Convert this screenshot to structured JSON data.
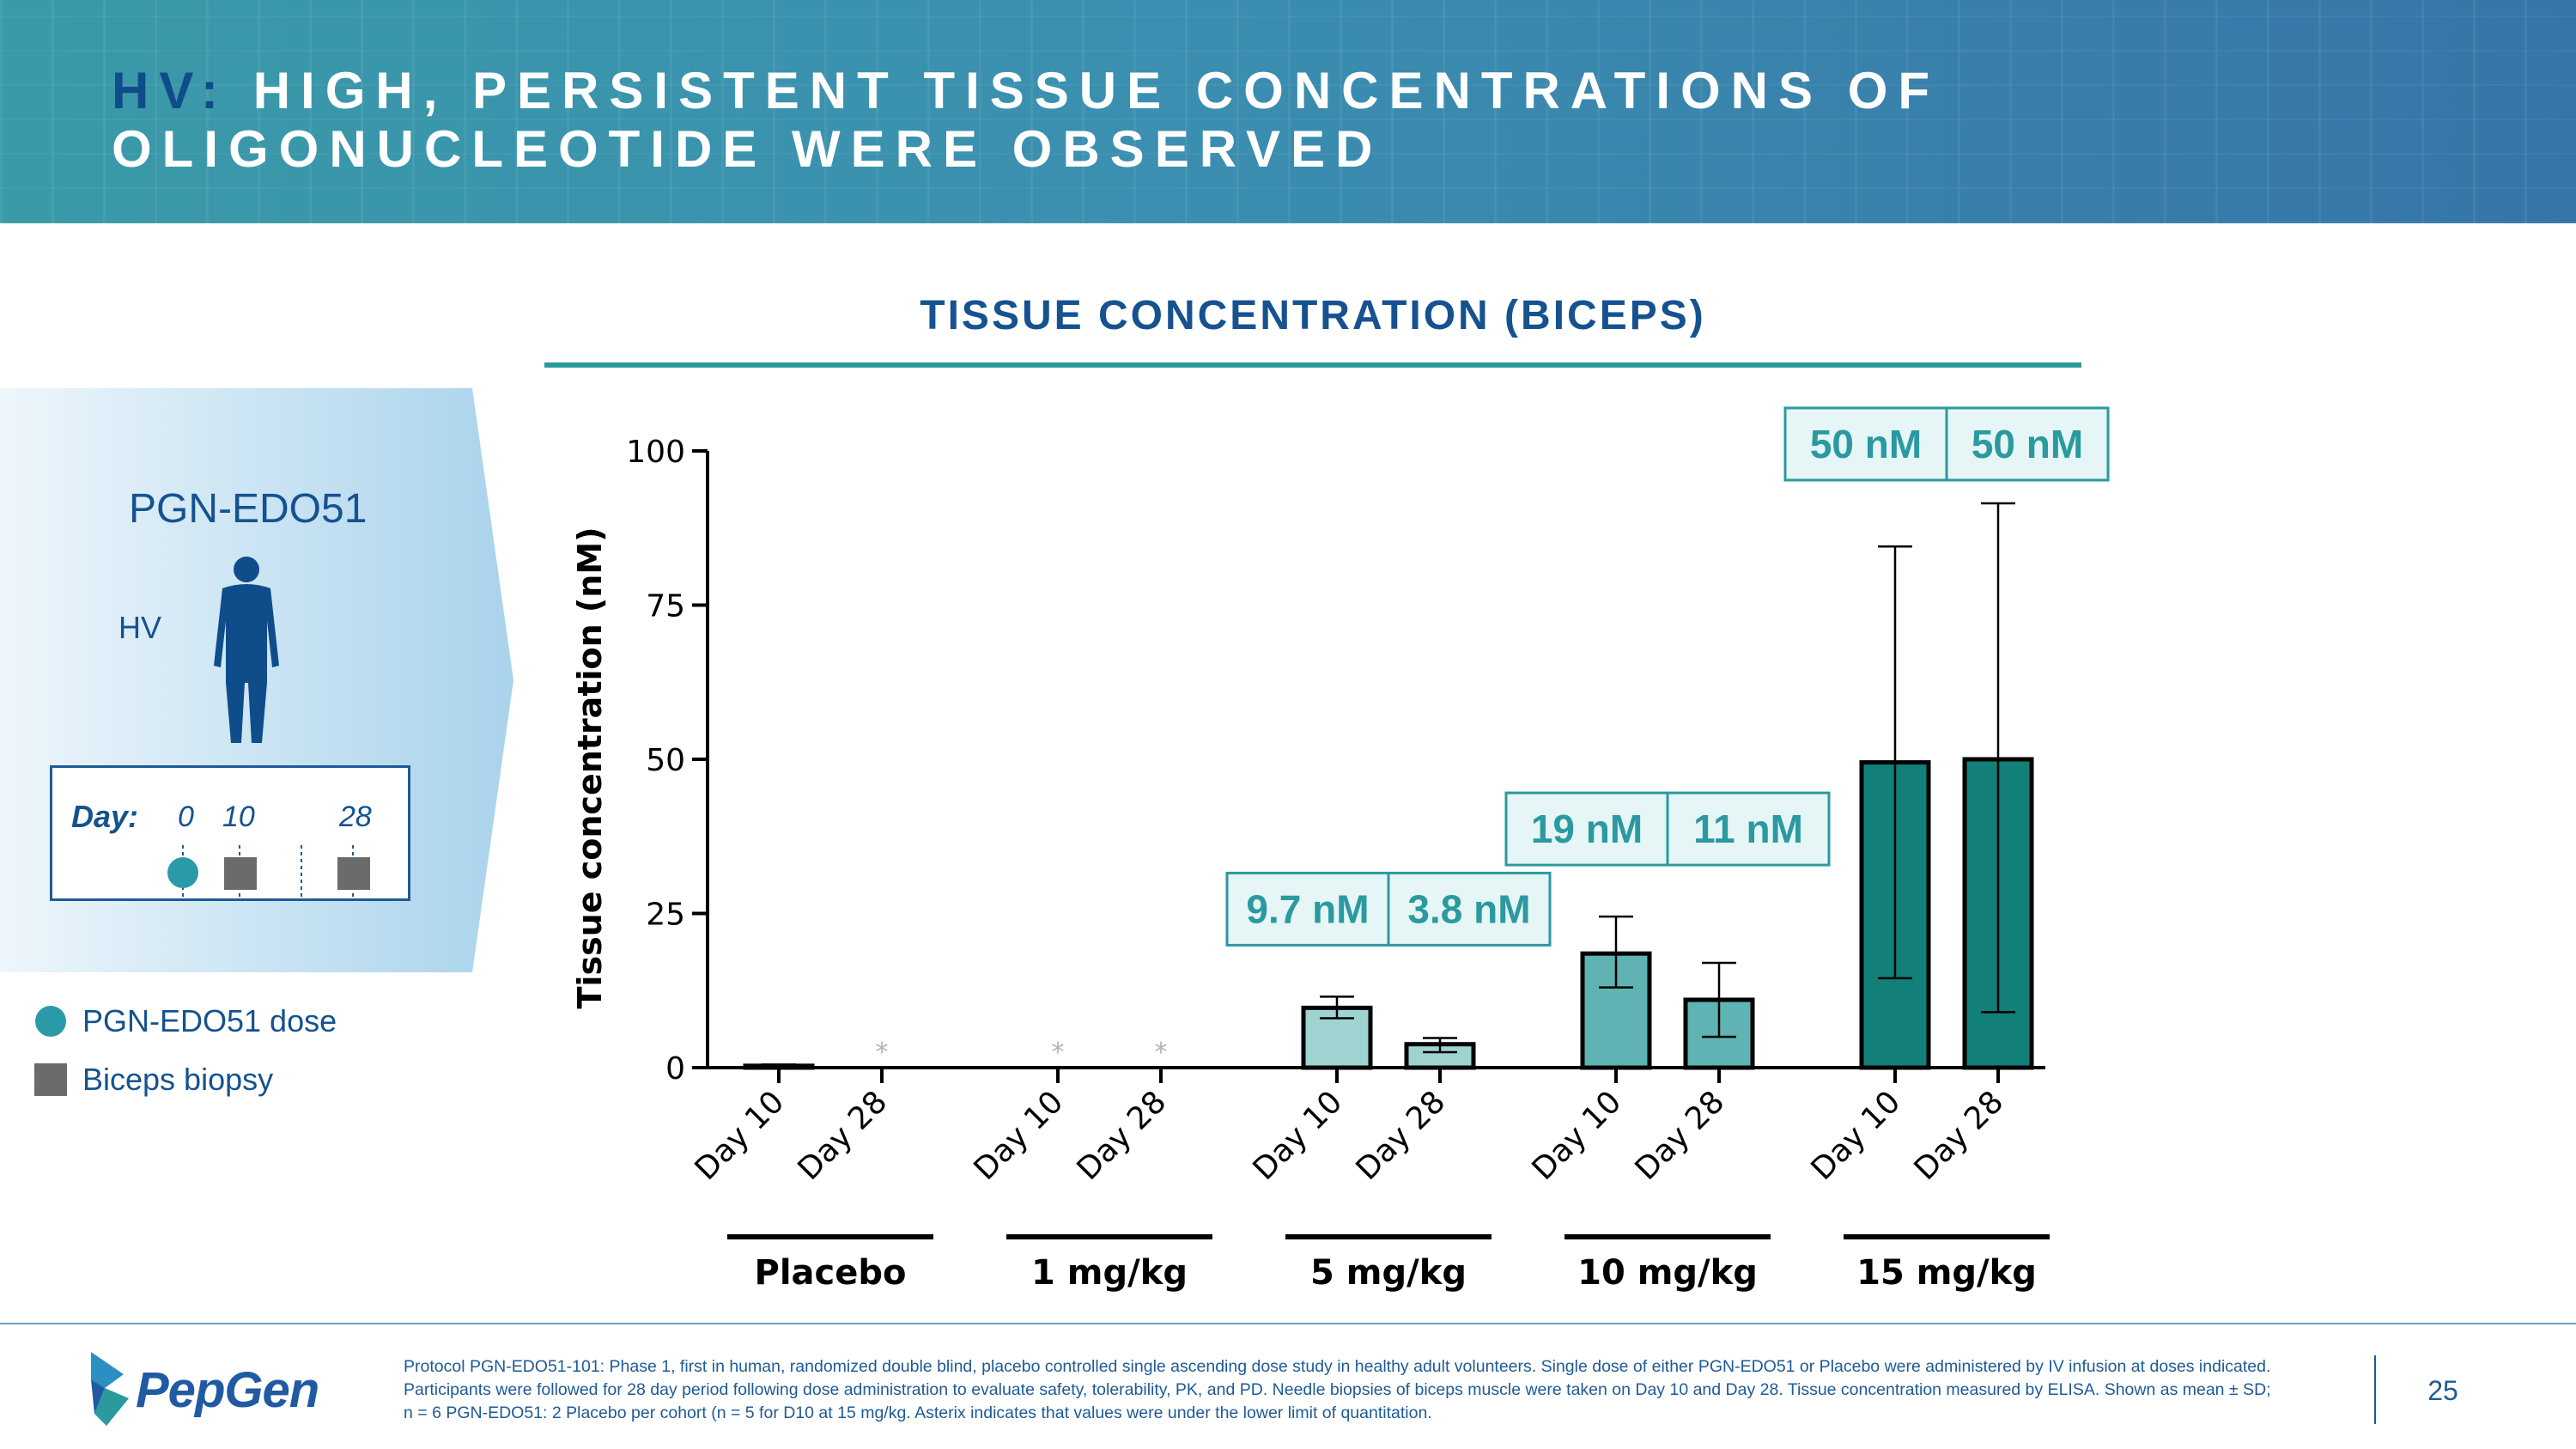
{
  "header": {
    "title_prefix": "HV:",
    "title_line1_rest": " HIGH, PERSISTENT TISSUE CONCENTRATIONS OF",
    "title_line2": "OLIGONUCLEOTIDE WERE OBSERVED"
  },
  "left_panel": {
    "drug_name": "PGN-EDO51",
    "population": "HV",
    "timeline": {
      "day_label": "Day:",
      "day_0": "0",
      "day_10": "10",
      "day_28": "28"
    },
    "legend": [
      {
        "label": "PGN-EDO51 dose",
        "icon": "dose-circle-icon",
        "color": "#2a9aa8"
      },
      {
        "label": "Biceps biopsy",
        "icon": "biopsy-square-icon",
        "color": "#6b6b6b"
      }
    ]
  },
  "colors": {
    "brand_blue": "#15528f",
    "teal_line": "#2a9a9e",
    "callout_text": "#2a9aa0",
    "callout_bg": "#e6f5f5"
  },
  "chart_data": {
    "type": "bar",
    "title": "TISSUE CONCENTRATION (BICEPS)",
    "ylabel": "Tissue concentration (nM)",
    "xlabel": "",
    "ylim": [
      0,
      100
    ],
    "yticks": [
      "0",
      "25",
      "50",
      "75",
      "100"
    ],
    "below_lloq_marker": "*",
    "groups": [
      {
        "label": "Placebo",
        "bars": [
          {
            "label": "Day 10",
            "value": 0.3,
            "sd_low": 0,
            "sd_high": 0.5,
            "below_lloq": false,
            "color": "#ffffff"
          },
          {
            "label": "Day 28",
            "value": 0,
            "sd_low": 0,
            "sd_high": 0,
            "below_lloq": true,
            "color": "#ffffff"
          }
        ]
      },
      {
        "label": "1 mg/kg",
        "bars": [
          {
            "label": "Day 10",
            "value": 0,
            "sd_low": 0,
            "sd_high": 0,
            "below_lloq": true,
            "color": "#d9f0f0"
          },
          {
            "label": "Day 28",
            "value": 0,
            "sd_low": 0,
            "sd_high": 0,
            "below_lloq": true,
            "color": "#d9f0f0"
          }
        ]
      },
      {
        "label": "5 mg/kg",
        "callouts": [
          "9.7 nM",
          "3.8 nM"
        ],
        "bars": [
          {
            "label": "Day 10",
            "value": 9.7,
            "sd_low": 8.0,
            "sd_high": 11.5,
            "below_lloq": false,
            "color": "#9fd3d2"
          },
          {
            "label": "Day 28",
            "value": 3.8,
            "sd_low": 2.5,
            "sd_high": 4.8,
            "below_lloq": false,
            "color": "#9fd3d2"
          }
        ]
      },
      {
        "label": "10 mg/kg",
        "callouts": [
          "19 nM",
          "11 nM"
        ],
        "bars": [
          {
            "label": "Day 10",
            "value": 18.5,
            "sd_low": 13.0,
            "sd_high": 24.5,
            "below_lloq": false,
            "color": "#5fb3b2"
          },
          {
            "label": "Day 28",
            "value": 11.0,
            "sd_low": 5.0,
            "sd_high": 17.0,
            "below_lloq": false,
            "color": "#5fb3b2"
          }
        ]
      },
      {
        "label": "15 mg/kg",
        "callouts": [
          "50 nM",
          "50 nM"
        ],
        "bars": [
          {
            "label": "Day 10",
            "value": 49.5,
            "sd_low": 14.5,
            "sd_high": 84.5,
            "below_lloq": false,
            "color": "#127f78"
          },
          {
            "label": "Day 28",
            "value": 50.0,
            "sd_low": 9.0,
            "sd_high": 91.5,
            "below_lloq": false,
            "color": "#127f78"
          }
        ]
      }
    ]
  },
  "footer": {
    "logo": "PepGen",
    "footnote": "Protocol PGN-EDO51-101: Phase 1, first in human, randomized double blind, placebo controlled single ascending dose study in healthy adult volunteers. Single dose of either PGN-EDO51 or Placebo were administered by IV infusion at doses indicated. Participants were followed for 28 day period following dose administration to evaluate safety, tolerability, PK, and PD. Needle biopsies of biceps muscle were taken on Day 10 and Day 28. Tissue concentration measured by ELISA. Shown as mean ± SD; n = 6 PGN-EDO51: 2 Placebo per cohort (n = 5 for D10 at 15 mg/kg. Asterix indicates that values were under the lower limit of quantitation.",
    "page_number": "25"
  }
}
